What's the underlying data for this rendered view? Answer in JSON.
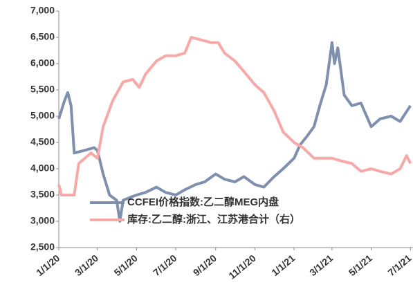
{
  "chart_data": {
    "type": "line",
    "xlim": [
      "2020-01-01",
      "2021-07-05"
    ],
    "xticks": [
      {
        "value": "2020-01-01",
        "label": "1/1/20"
      },
      {
        "value": "2020-03-01",
        "label": "3/1/20"
      },
      {
        "value": "2020-05-01",
        "label": "5/1/20"
      },
      {
        "value": "2020-07-01",
        "label": "7/1/20"
      },
      {
        "value": "2020-09-01",
        "label": "9/1/20"
      },
      {
        "value": "2020-11-01",
        "label": "11/1/20"
      },
      {
        "value": "2021-01-01",
        "label": "1/1/21"
      },
      {
        "value": "2021-03-01",
        "label": "3/1/21"
      },
      {
        "value": "2021-05-01",
        "label": "5/1/21"
      },
      {
        "value": "2021-07-01",
        "label": "7/1/21"
      }
    ],
    "ylim": [
      2500,
      7000
    ],
    "yticks": [
      {
        "value": 2500,
        "label": "2,500"
      },
      {
        "value": 3000,
        "label": "3,000"
      },
      {
        "value": 3500,
        "label": "3,500"
      },
      {
        "value": 4000,
        "label": "4,000"
      },
      {
        "value": 4500,
        "label": "4,500"
      },
      {
        "value": 5000,
        "label": "5,000"
      },
      {
        "value": 5500,
        "label": "5,500"
      },
      {
        "value": 6000,
        "label": "6,000"
      },
      {
        "value": 6500,
        "label": "6,500"
      },
      {
        "value": 7000,
        "label": "7,000"
      }
    ],
    "series": [
      {
        "name": "CCFEI价格指数:乙二醇MEG内盘",
        "color": "#7f8fae",
        "x": [
          "2020-01-01",
          "2020-01-10",
          "2020-01-15",
          "2020-01-20",
          "2020-01-25",
          "2020-02-10",
          "2020-02-25",
          "2020-03-01",
          "2020-03-10",
          "2020-03-20",
          "2020-03-31",
          "2020-04-05",
          "2020-04-10",
          "2020-04-20",
          "2020-05-01",
          "2020-05-15",
          "2020-06-01",
          "2020-06-15",
          "2020-07-01",
          "2020-07-15",
          "2020-08-01",
          "2020-08-15",
          "2020-09-01",
          "2020-09-15",
          "2020-10-01",
          "2020-10-15",
          "2020-11-01",
          "2020-11-15",
          "2020-12-01",
          "2020-12-15",
          "2021-01-01",
          "2021-01-10",
          "2021-01-20",
          "2021-02-01",
          "2021-02-10",
          "2021-02-20",
          "2021-03-01",
          "2021-03-05",
          "2021-03-10",
          "2021-03-20",
          "2021-04-01",
          "2021-04-15",
          "2021-05-01",
          "2021-05-15",
          "2021-06-01",
          "2021-06-15",
          "2021-07-01"
        ],
        "values": [
          4950,
          5300,
          5450,
          5200,
          4300,
          4350,
          4400,
          4350,
          3900,
          3500,
          3400,
          3000,
          3400,
          3450,
          3500,
          3550,
          3650,
          3550,
          3500,
          3600,
          3700,
          3750,
          3900,
          3800,
          3750,
          3850,
          3700,
          3650,
          3850,
          4000,
          4200,
          4450,
          4600,
          4800,
          5200,
          5600,
          6400,
          6000,
          6300,
          5400,
          5200,
          5250,
          4800,
          4950,
          5000,
          4900,
          5200
        ]
      },
      {
        "name": "库存:乙二醇:浙江、江苏港合计（右）",
        "color": "#f7a9a8",
        "x": [
          "2020-01-01",
          "2020-01-05",
          "2020-01-25",
          "2020-02-01",
          "2020-02-20",
          "2020-03-01",
          "2020-03-10",
          "2020-03-25",
          "2020-04-10",
          "2020-04-25",
          "2020-05-05",
          "2020-05-15",
          "2020-06-01",
          "2020-06-15",
          "2020-07-01",
          "2020-07-15",
          "2020-07-25",
          "2020-08-10",
          "2020-08-25",
          "2020-09-05",
          "2020-09-15",
          "2020-10-01",
          "2020-10-15",
          "2020-11-01",
          "2020-11-15",
          "2020-12-01",
          "2020-12-15",
          "2021-01-01",
          "2021-01-15",
          "2021-02-01",
          "2021-02-15",
          "2021-03-01",
          "2021-03-15",
          "2021-04-01",
          "2021-04-15",
          "2021-05-01",
          "2021-05-15",
          "2021-06-01",
          "2021-06-15",
          "2021-06-25",
          "2021-07-01"
        ],
        "values": [
          3700,
          3500,
          3500,
          4100,
          4300,
          4200,
          4800,
          5300,
          5650,
          5700,
          5550,
          5800,
          6050,
          6150,
          6150,
          6200,
          6500,
          6450,
          6400,
          6400,
          6200,
          6050,
          5850,
          5600,
          5450,
          5100,
          4700,
          4500,
          4400,
          4200,
          4200,
          4200,
          4150,
          4100,
          3950,
          4000,
          3950,
          3900,
          4000,
          4250,
          4100
        ]
      }
    ]
  }
}
